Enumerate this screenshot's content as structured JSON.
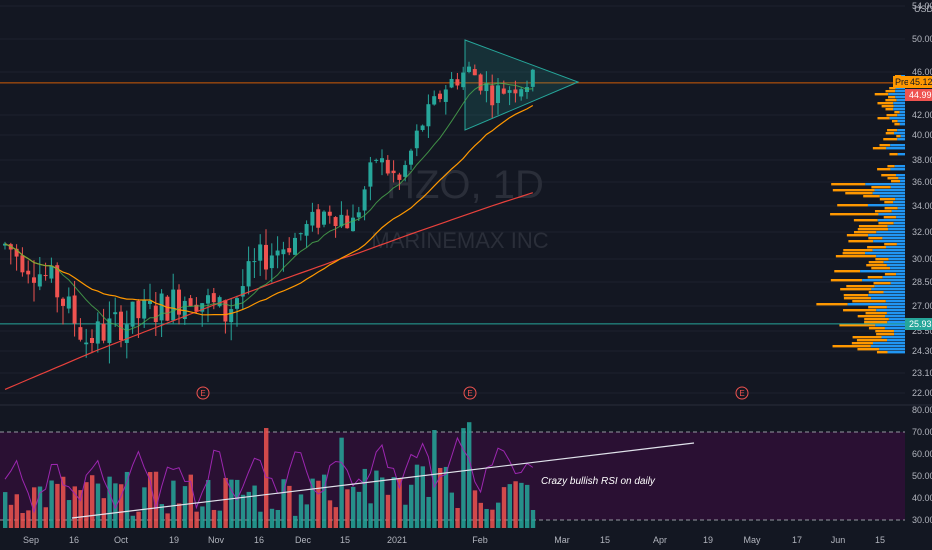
{
  "watermark": {
    "ticker": "HZO, 1D",
    "name": "MARINEMAX INC"
  },
  "currency": "USD",
  "price_axis": {
    "labels": [
      "54.00",
      "50.00",
      "46.00",
      "42.00",
      "40.00",
      "38.00",
      "36.00",
      "34.00",
      "32.00",
      "30.00",
      "28.50",
      "27.00",
      "25.50",
      "24.30",
      "23.10",
      "22.00"
    ],
    "values": [
      54,
      50,
      46,
      42,
      40,
      38,
      36,
      34,
      32,
      30,
      28.5,
      27,
      25.5,
      24.3,
      23.1,
      22
    ],
    "last_price_label": "44.99",
    "pre_label": "Pre",
    "pre_price_label": "45.12",
    "support_price_label": "25.93",
    "last_price": 44.99,
    "support_price": 25.93
  },
  "rsi_axis": {
    "labels": [
      "80.00",
      "70.00",
      "60.00",
      "50.00",
      "40.00",
      "30.00"
    ],
    "values": [
      80,
      70,
      60,
      50,
      40,
      30
    ]
  },
  "time_axis": {
    "labels": [
      "Sep",
      "16",
      "Oct",
      "19",
      "Nov",
      "16",
      "Dec",
      "15",
      "2021",
      "Feb",
      "Mar",
      "15",
      "Apr",
      "19",
      "May",
      "17",
      "Jun",
      "15"
    ]
  },
  "earnings_markers": [
    "E",
    "E",
    "E"
  ],
  "annotation": "Crazy bullish RSI on daily",
  "colors": {
    "bg": "#131722",
    "up": "#26a69a",
    "down": "#ef5350",
    "ma_fast": "#4caf50",
    "ma_mid": "#ff9800",
    "ma_slow": "#e8413c",
    "rsi_line": "#9c27b0",
    "rsi_band": "#2a1033",
    "triangle": "#26a69a",
    "support": "#26a69a",
    "resistance": "#ff6d00",
    "vp_up": "#2196f3",
    "vp_down": "#ff9800"
  },
  "chart_data": {
    "type": "candlestick",
    "series_trend": {
      "start": "2020-08-27",
      "points": [
        {
          "date": "Sep",
          "close": 30.5
        },
        {
          "date": "Oct",
          "close": 26.5
        },
        {
          "date": "Nov",
          "close": 27.5
        },
        {
          "date": "Dec",
          "close": 33.5
        },
        {
          "date": "2021",
          "close": 38.5
        },
        {
          "date": "Feb",
          "close": 44.0
        }
      ]
    },
    "ylim": [
      22,
      54
    ],
    "rsi_ylim": [
      30,
      80
    ],
    "rsi_overbought": 70,
    "rsi_oversold": 30
  }
}
